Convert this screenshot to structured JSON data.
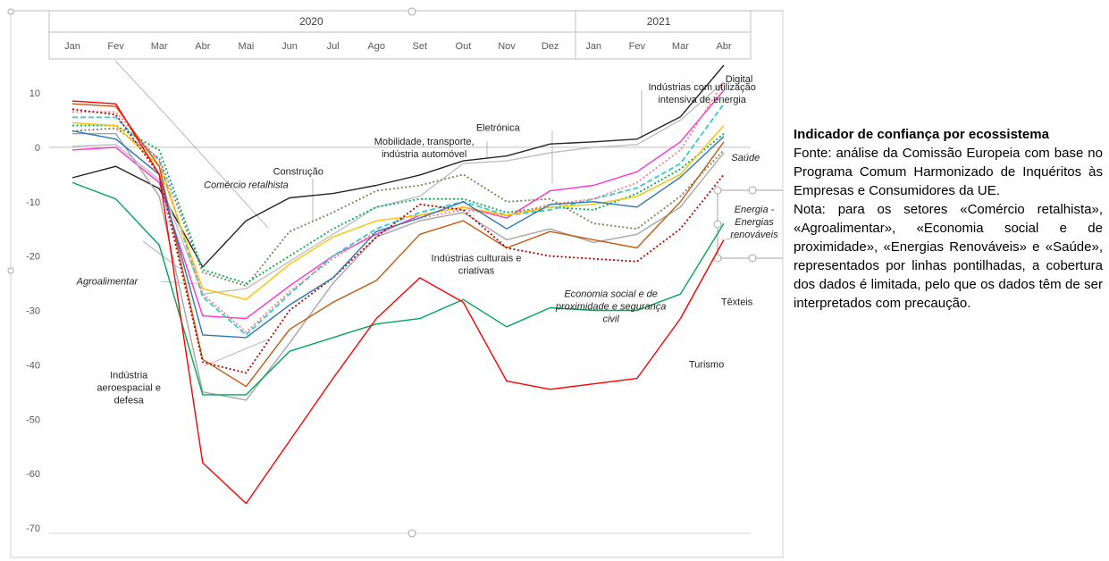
{
  "note": {
    "title": "Indicador de confiança por ecossistema",
    "source": "Fonte: análise da Comissão Europeia com base no Programa Comum Harmonizado de Inquéritos às Empresas e Consumidores da UE.",
    "note": "Nota: para os setores «Comércio retalhista», «Agroalimentar», «Economia social e de proximidade», «Energias Renováveis» e «Saúde», representados por linhas pontilhadas, a cobertura dos dados é limitada, pelo que os dados têm de ser interpretados com precaução."
  },
  "chart_data": {
    "type": "line",
    "title": "",
    "xlabel": "",
    "ylabel": "",
    "ylim": [
      -70,
      15
    ],
    "yticks": [
      10,
      0,
      -10,
      -20,
      -30,
      -40,
      -50,
      -60,
      -70
    ],
    "years": [
      {
        "label": "2020",
        "span": [
          0,
          11
        ]
      },
      {
        "label": "2021",
        "span": [
          12,
          15
        ]
      }
    ],
    "categories": [
      "Jan",
      "Fev",
      "Mar",
      "Abr",
      "Mai",
      "Jun",
      "Jul",
      "Ago",
      "Set",
      "Out",
      "Nov",
      "Dez",
      "Jan",
      "Fev",
      "Mar",
      "Abr"
    ],
    "legend": "none",
    "series": [
      {
        "name": "Indústrias com utilização intensiva de energia",
        "color": "#262626",
        "dash": "solid",
        "values": [
          -5.6,
          -3.5,
          -7.6,
          -22.0,
          -13.5,
          -9.3,
          -8.5,
          -7.0,
          -5.1,
          -2.5,
          -1.6,
          0.6,
          1.0,
          1.5,
          5.6,
          15.1
        ]
      },
      {
        "name": "Digital",
        "color": "#bfbfbf",
        "dash": "solid",
        "values": [
          0.2,
          0.5,
          -6.0,
          -27.0,
          -26.0,
          -21.0,
          -16.0,
          -11.0,
          -9.0,
          -3.0,
          -2.5,
          -1.0,
          0.0,
          0.5,
          5.0,
          12.0
        ]
      },
      {
        "name": "Eletrónica",
        "color": "#ff33cc",
        "dash": "solid",
        "values": [
          -0.5,
          0.0,
          -6.5,
          -31.0,
          -31.5,
          -25.5,
          -20.0,
          -16.0,
          -12.5,
          -11.0,
          -13.0,
          -8.0,
          -7.0,
          -4.5,
          1.0,
          10.5
        ]
      },
      {
        "name": "Mobilidade, transporte, indústria automóvel",
        "color": "#a6a6a6",
        "dash": "solid",
        "values": [
          2.5,
          2.5,
          -9.0,
          -45.0,
          -46.5,
          -36.0,
          -25.0,
          -16.5,
          -13.5,
          -12.0,
          -17.0,
          -15.0,
          -17.5,
          -16.0,
          -11.0,
          -1.0
        ]
      },
      {
        "name": "Construção",
        "color": "#7f7f5f",
        "dash": "dotted",
        "values": [
          3.0,
          3.5,
          -2.0,
          -23.0,
          -25.5,
          -15.5,
          -12.0,
          -8.0,
          -7.0,
          -5.0,
          -10.0,
          -9.5,
          -14.0,
          -15.0,
          -9.0,
          -0.5
        ]
      },
      {
        "name": "Comércio retalhista",
        "color": "#00b050",
        "dash": "dotted",
        "values": [
          4.0,
          4.0,
          -0.5,
          -22.5,
          -25.0,
          -20.0,
          -15.0,
          -11.0,
          -9.5,
          -9.5,
          -12.0,
          -11.0,
          -11.5,
          -8.5,
          -4.0,
          2.5
        ]
      },
      {
        "name": "Saúde",
        "color": "#33cccc",
        "dash": "dashed",
        "values": [
          5.5,
          5.5,
          -2.5,
          -27.5,
          -34.5,
          -27.0,
          -20.0,
          -15.0,
          -12.0,
          -10.0,
          -12.5,
          -11.5,
          -9.5,
          -7.5,
          -3.0,
          8.0
        ]
      },
      {
        "name": "Energia - Energias renováveis",
        "color": "#ff7c80",
        "dash": "dotted",
        "values": [
          6.5,
          6.5,
          -2.5,
          -27.0,
          -34.0,
          -26.5,
          -20.5,
          -15.5,
          -13.0,
          -11.5,
          -12.5,
          -10.5,
          -9.5,
          -6.5,
          -0.5,
          12.0
        ]
      },
      {
        "name": "Indústrias culturais e criativas",
        "color": "#ffc000",
        "dash": "solid",
        "values": [
          4.5,
          4.0,
          -3.5,
          -26.0,
          -28.0,
          -21.5,
          -16.5,
          -13.5,
          -12.5,
          -11.0,
          -12.5,
          -11.0,
          -10.5,
          -9.0,
          -5.0,
          4.0
        ]
      },
      {
        "name": "Economia social e de proximidade e segurança civil",
        "color": "#c55a11",
        "dash": "solid",
        "values": [
          8.0,
          7.5,
          -3.5,
          -39.0,
          -44.0,
          -33.5,
          -28.5,
          -24.5,
          -16.0,
          -13.5,
          -18.5,
          -15.5,
          -17.0,
          -18.5,
          -10.0,
          1.0
        ]
      },
      {
        "name": "Agroalimentar",
        "color": "#c00000",
        "dash": "dotted",
        "values": [
          7.0,
          6.0,
          -5.0,
          -39.5,
          -41.5,
          -30.0,
          -24.0,
          -16.5,
          -10.5,
          -11.5,
          -18.5,
          -20.0,
          -20.5,
          -21.0,
          -15.0,
          -5.0
        ]
      },
      {
        "name": "Aeroespacial e defesa",
        "color": "#2e75b6",
        "dash": "solid",
        "values": [
          3.0,
          1.5,
          -5.0,
          -34.5,
          -35.0,
          -29.0,
          -24.0,
          -15.5,
          -13.0,
          -10.0,
          -15.0,
          -10.5,
          -10.0,
          -11.0,
          -5.5,
          2.0
        ]
      },
      {
        "name": "Têxteis",
        "color": "#00a65a",
        "dash": "solid",
        "values": [
          -6.5,
          -9.5,
          -18.0,
          -45.5,
          -45.5,
          -37.5,
          -35.0,
          -32.5,
          -31.5,
          -28.0,
          -33.0,
          -29.5,
          -30.0,
          -30.0,
          -27.0,
          -14.0
        ]
      },
      {
        "name": "Turismo",
        "color": "#ff0000",
        "dash": "solid",
        "values": [
          8.5,
          8.0,
          -5.0,
          -58.0,
          -65.5,
          -54.0,
          -42.5,
          -31.5,
          -24.0,
          -28.5,
          -43.0,
          -44.5,
          -43.5,
          -42.5,
          -31.5,
          -17.0
        ]
      }
    ],
    "annotations": [
      {
        "lines": [
          "Indústrias com utilização",
          "intensiva de energia"
        ],
        "italic": false,
        "x": 14.5,
        "y": 10.5
      },
      {
        "lines": [
          "Digital"
        ],
        "italic": false,
        "x": 15.35,
        "y": 12.0
      },
      {
        "lines": [
          "Eletrónica"
        ],
        "italic": false,
        "x": 9.8,
        "y": 3.0
      },
      {
        "lines": [
          "Mobilidade, transporte,",
          "indústria automóvel"
        ],
        "italic": false,
        "x": 8.1,
        "y": 0.5
      },
      {
        "lines": [
          "Construção"
        ],
        "italic": false,
        "x": 5.2,
        "y": -5.0
      },
      {
        "lines": [
          "Comércio retalhista"
        ],
        "italic": true,
        "x": 4.0,
        "y": -7.5
      },
      {
        "lines": [
          "Saúde"
        ],
        "italic": true,
        "x": 15.5,
        "y": -2.5
      },
      {
        "lines": [
          "Energia -",
          "Energias",
          "renováveis"
        ],
        "italic": true,
        "x": 15.7,
        "y": -12.0
      },
      {
        "lines": [
          "Indústrias culturais e",
          "criativas"
        ],
        "italic": false,
        "x": 9.3,
        "y": -21.0
      },
      {
        "lines": [
          "Economia social e de",
          "proximidade e segurança",
          "civil"
        ],
        "italic": true,
        "x": 12.4,
        "y": -27.5
      },
      {
        "lines": [
          "Agroalimentar"
        ],
        "italic": true,
        "x": 0.8,
        "y": -25.2
      },
      {
        "lines": [
          "Indústria",
          "aeroespacial e",
          "defesa"
        ],
        "italic": false,
        "x": 1.3,
        "y": -42.5
      },
      {
        "lines": [
          "Têxteis"
        ],
        "italic": false,
        "x": 15.3,
        "y": -29.0
      },
      {
        "lines": [
          "Turismo"
        ],
        "italic": false,
        "x": 14.6,
        "y": -40.5
      }
    ]
  }
}
